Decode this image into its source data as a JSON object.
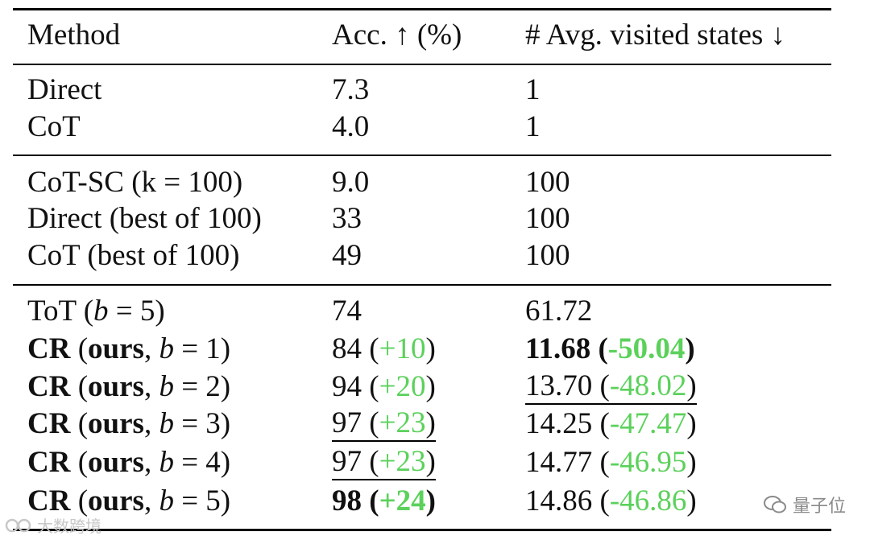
{
  "header": {
    "method": "Method",
    "acc": "Acc. ↑ (%)",
    "states": "# Avg. visited states ↓"
  },
  "rows": {
    "direct": {
      "method": "Direct",
      "acc": "7.3",
      "states": "1"
    },
    "cot": {
      "method": "CoT",
      "acc": "4.0",
      "states": "1"
    },
    "cotsc": {
      "method": "CoT-SC (k = 100)",
      "acc": "9.0",
      "states": "100"
    },
    "directbest": {
      "method": "Direct (best of 100)",
      "acc": "33",
      "states": "100"
    },
    "cotbest": {
      "method": "CoT (best of 100)",
      "acc": "49",
      "states": "100"
    },
    "tot": {
      "method_prefix": "ToT (",
      "method_var": "b",
      "method_suffix": " = 5)",
      "acc": "74",
      "states": "61.72"
    },
    "cr1": {
      "bold": "CR",
      "ours": "ours",
      "var": "b",
      "eq": " = 1)",
      "acc": "84",
      "acc_delta": "+10",
      "states": "11.68",
      "states_delta": "-50.04"
    },
    "cr2": {
      "bold": "CR",
      "ours": "ours",
      "var": "b",
      "eq": " = 2)",
      "acc": "94",
      "acc_delta": "+20",
      "states": "13.70",
      "states_delta": "-48.02"
    },
    "cr3": {
      "bold": "CR",
      "ours": "ours",
      "var": "b",
      "eq": " = 3)",
      "acc": "97",
      "acc_delta": "+23",
      "states": "14.25",
      "states_delta": "-47.47"
    },
    "cr4": {
      "bold": "CR",
      "ours": "ours",
      "var": "b",
      "eq": " = 4)",
      "acc": "97",
      "acc_delta": "+23",
      "states": "14.77",
      "states_delta": "-46.95"
    },
    "cr5": {
      "bold": "CR",
      "ours": "ours",
      "var": "b",
      "eq": " = 5)",
      "acc": "98",
      "acc_delta": "+24",
      "states": "14.86",
      "states_delta": "-46.86"
    }
  },
  "watermarks": {
    "right": "量子位",
    "left": "大数跨境"
  },
  "colors": {
    "delta": "#5bd15b"
  }
}
